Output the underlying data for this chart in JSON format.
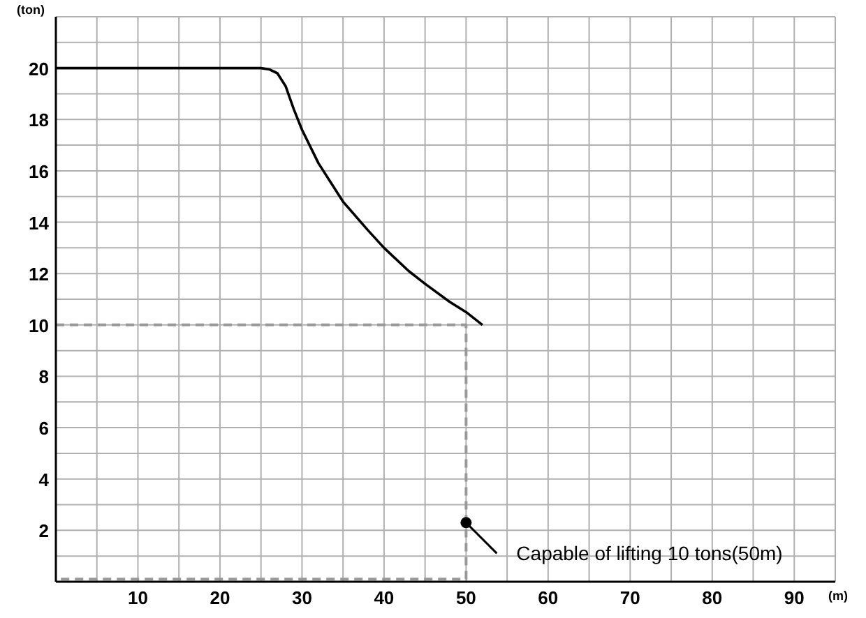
{
  "chart_data": {
    "type": "line",
    "xlabel": "(m)",
    "ylabel": "(ton)",
    "xlim": [
      0,
      95
    ],
    "ylim": [
      0,
      22
    ],
    "xticks": [
      {
        "value": 5,
        "label": null
      },
      10,
      {
        "value": 15,
        "label": null
      },
      20,
      {
        "value": 25,
        "label": null
      },
      30,
      {
        "value": 35,
        "label": null
      },
      40,
      {
        "value": 45,
        "label": null
      },
      50,
      {
        "value": 55,
        "label": null
      },
      60,
      {
        "value": 65,
        "label": null
      },
      70,
      {
        "value": 75,
        "label": null
      },
      80,
      {
        "value": 85,
        "label": null
      },
      90,
      {
        "value": 95,
        "label": null
      }
    ],
    "yticks": [
      {
        "value": 1,
        "label": null
      },
      2,
      {
        "value": 3,
        "label": null
      },
      4,
      {
        "value": 5,
        "label": null
      },
      6,
      {
        "value": 7,
        "label": null
      },
      8,
      {
        "value": 9,
        "label": null
      },
      10,
      {
        "value": 11,
        "label": null
      },
      12,
      {
        "value": 13,
        "label": null
      },
      14,
      {
        "value": 15,
        "label": null
      },
      16,
      {
        "value": 17,
        "label": null
      },
      18,
      {
        "value": 19,
        "label": null
      },
      20,
      {
        "value": 21,
        "label": null
      },
      {
        "value": 22,
        "label": null
      }
    ],
    "grid": true,
    "series": [
      {
        "color": "#000000",
        "line_style": "solid",
        "x": [
          0,
          10,
          20,
          25,
          26,
          27,
          28,
          29,
          30,
          32,
          35,
          38,
          40,
          43,
          45,
          48,
          50,
          52
        ],
        "values": [
          20,
          20,
          20,
          20,
          19.95,
          19.8,
          19.3,
          18.4,
          17.6,
          16.3,
          14.8,
          13.7,
          13,
          12.1,
          11.6,
          10.9,
          10.5,
          10
        ]
      },
      {
        "color": "#999999",
        "line_style": "dashed",
        "x": [
          0,
          50,
          50,
          0
        ],
        "values": [
          10,
          10,
          0.1,
          0.1
        ]
      }
    ],
    "annotations": [
      {
        "text": "Capable of lifting  10 tons(50m)",
        "x": 50,
        "y": 2.3
      }
    ]
  }
}
